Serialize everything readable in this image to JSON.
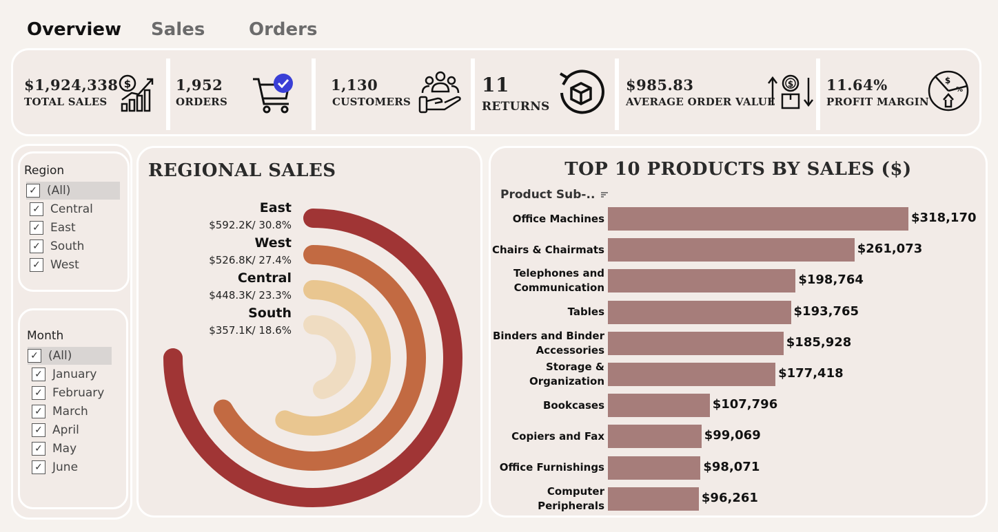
{
  "tabs": [
    {
      "label": "Overview",
      "active": true
    },
    {
      "label": "Sales",
      "active": false
    },
    {
      "label": "Orders",
      "active": false
    }
  ],
  "kpis": [
    {
      "value": "$1,924,338",
      "label": "TOTAL SALES",
      "icon": "dollar-growth-chart-icon"
    },
    {
      "value": "1,952",
      "label": "ORDERS",
      "icon": "shopping-cart-check-icon"
    },
    {
      "value": "1,130",
      "label": "CUSTOMERS",
      "icon": "customers-hand-icon"
    },
    {
      "value": "11",
      "label": "RETURNS",
      "icon": "return-box-icon"
    },
    {
      "value": "$985.83",
      "label": "AVERAGE ORDER VALUE",
      "icon": "order-value-arrows-icon"
    },
    {
      "value": "11.64%",
      "label": "PROFIT MARGIN",
      "icon": "profit-pie-icon"
    }
  ],
  "filters": {
    "region": {
      "title": "Region",
      "items": [
        "(All)",
        "Central",
        "East",
        "South",
        "West"
      ]
    },
    "month": {
      "title": "Month",
      "items": [
        "(All)",
        "January",
        "February",
        "March",
        "April",
        "May",
        "June"
      ]
    },
    "checkmark": "✓"
  },
  "regional": {
    "title": "REGIONAL SALES",
    "regions": [
      {
        "name": "East",
        "value": "$592.2K/ 30.8%",
        "share": 30.8,
        "color": "#a03535"
      },
      {
        "name": "West",
        "value": "$526.8K/ 27.4%",
        "share": 27.4,
        "color": "#c26a42"
      },
      {
        "name": "Central",
        "value": "$448.3K/ 23.3%",
        "share": 23.3,
        "color": "#e9c690"
      },
      {
        "name": "South",
        "value": "$357.1K/ 18.6%",
        "share": 18.6,
        "color": "#efdcc1"
      }
    ]
  },
  "products": {
    "title": "TOP 10 PRODUCTS BY SALES ($)",
    "axis_label": "Product Sub-..",
    "bar_color": "#a67d7a",
    "chart_data": {
      "type": "bar",
      "orientation": "horizontal",
      "categories": [
        "Office Machines",
        "Chairs & Chairmats",
        "Telephones and Communication",
        "Tables",
        "Binders and Binder Accessories",
        "Storage & Organization",
        "Bookcases",
        "Copiers and Fax",
        "Office Furnishings",
        "Computer Peripherals"
      ],
      "category_lines": [
        [
          "Office Machines"
        ],
        [
          "Chairs & Chairmats"
        ],
        [
          "Telephones and",
          "Communication"
        ],
        [
          "Tables"
        ],
        [
          "Binders and Binder",
          "Accessories"
        ],
        [
          "Storage &",
          "Organization"
        ],
        [
          "Bookcases"
        ],
        [
          "Copiers and Fax"
        ],
        [
          "Office Furnishings"
        ],
        [
          "Computer",
          "Peripherals"
        ]
      ],
      "values": [
        318170,
        261073,
        198764,
        193765,
        185928,
        177418,
        107796,
        99069,
        98071,
        96261
      ],
      "value_labels": [
        "$318,170",
        "$261,073",
        "$198,764",
        "$193,765",
        "$185,928",
        "$177,418",
        "$107,796",
        "$99,069",
        "$98,071",
        "$96,261"
      ],
      "xlim": [
        0,
        318170
      ]
    }
  }
}
